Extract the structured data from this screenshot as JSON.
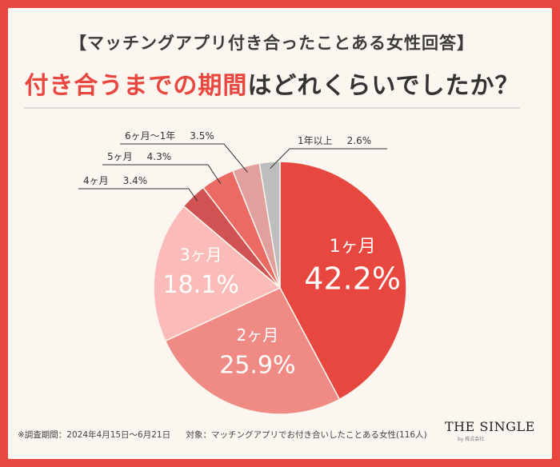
{
  "header": {
    "subtitle": "【マッチングアプリ付き合ったことある女性回答】",
    "title_highlight": "付き合うまでの期間",
    "title_rest": "はどれくらいでしたか？"
  },
  "footer": {
    "survey_period": "※調査期間：2024年4月15日～6月21日",
    "target": "対象：マッチングアプリでお付き合いしたことある女性(116人)",
    "brand": "THE SINGLE",
    "brand_sub": "by 株式会社"
  },
  "chart_data": {
    "type": "pie",
    "title": "付き合うまでの期間はどれくらいでしたか？",
    "start": "12 o'clock",
    "direction": "clockwise",
    "slices": [
      {
        "label": "1ヶ月",
        "value": 42.2,
        "value_text": "42.2%",
        "color": "#e8473f",
        "label_placement": "inside",
        "text_color": "#ffffff"
      },
      {
        "label": "2ヶ月",
        "value": 25.9,
        "value_text": "25.9%",
        "color": "#f08a84",
        "label_placement": "inside",
        "text_color": "#ffffff"
      },
      {
        "label": "3ヶ月",
        "value": 18.1,
        "value_text": "18.1%",
        "color": "#fbbcb9",
        "label_placement": "inside",
        "text_color": "#ffffff"
      },
      {
        "label": "4ヶ月",
        "value": 3.4,
        "value_text": "3.4%",
        "color": "#d05252",
        "label_placement": "callout",
        "text_color": "#333333"
      },
      {
        "label": "5ヶ月",
        "value": 4.3,
        "value_text": "4.3%",
        "color": "#eb6a63",
        "label_placement": "callout",
        "text_color": "#333333"
      },
      {
        "label": "6ヶ月～1年",
        "value": 3.5,
        "value_text": "3.5%",
        "color": "#e2a09d",
        "label_placement": "callout",
        "text_color": "#333333"
      },
      {
        "label": "1年以上",
        "value": 2.6,
        "value_text": "2.6%",
        "color": "#bdbdbd",
        "label_placement": "callout",
        "text_color": "#333333"
      }
    ]
  }
}
